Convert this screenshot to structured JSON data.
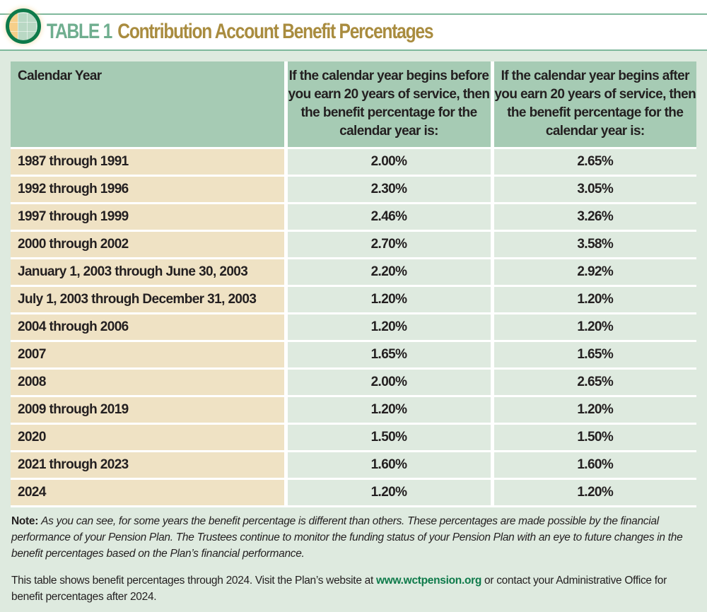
{
  "header": {
    "table_label": "TABLE 1",
    "title": "Contribution Account Benefit Percentages"
  },
  "table": {
    "columns": [
      "Calendar Year",
      "If the calendar year begins before you earn 20 years of service, then the benefit percentage for the calendar year is:",
      "If the calendar year begins after you earn 20 years of service, then the benefit percentage for the calendar year is:"
    ],
    "rows": [
      [
        "1987 through 1991",
        "2.00%",
        "2.65%"
      ],
      [
        "1992 through 1996",
        "2.30%",
        "3.05%"
      ],
      [
        "1997 through 1999",
        "2.46%",
        "3.26%"
      ],
      [
        "2000 through 2002",
        "2.70%",
        "3.58%"
      ],
      [
        "January 1, 2003 through June 30, 2003",
        "2.20%",
        "2.92%"
      ],
      [
        "July 1, 2003 through December 31, 2003",
        "1.20%",
        "1.20%"
      ],
      [
        "2004 through 2006",
        "1.20%",
        "1.20%"
      ],
      [
        "2007",
        "1.65%",
        "1.65%"
      ],
      [
        "2008",
        "2.00%",
        "2.65%"
      ],
      [
        "2009 through 2019",
        "1.20%",
        "1.20%"
      ],
      [
        "2020",
        "1.50%",
        "1.50%"
      ],
      [
        "2021 through 2023",
        "1.60%",
        "1.60%"
      ],
      [
        "2024",
        "1.20%",
        "1.20%"
      ]
    ]
  },
  "note": {
    "label": "Note:",
    "text": "As you can see, for some years the benefit percentage is different than others. These percentages are made possible by the financial performance of your Pension Plan. The Trustees continue to monitor the funding status of your Pension Plan with an eye to future changes in the benefit percentages based on the Plan’s financial performance.",
    "p2_before": "This table shows benefit percentages through 2024. Visit the Plan’s website at ",
    "link": "www.wctpension.org",
    "p2_after": " or contact your Administrative Office for benefit percentages after 2024."
  }
}
